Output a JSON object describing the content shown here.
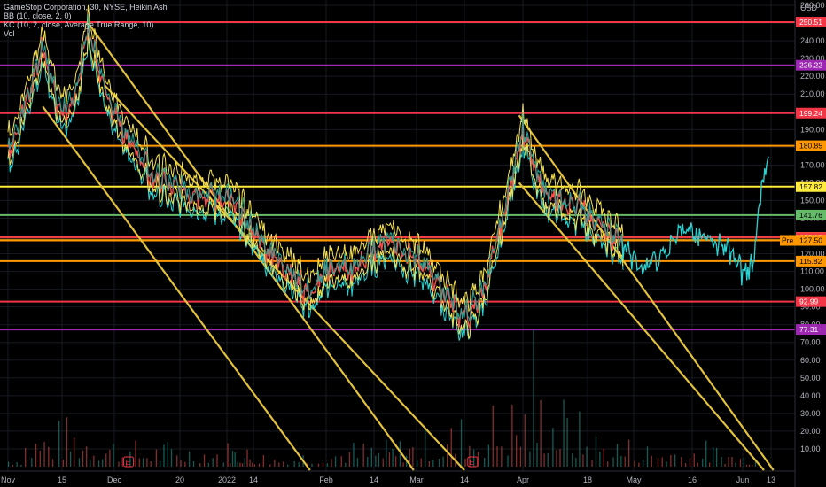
{
  "legend": {
    "symbol": "GameStop Corporation, 30, NYSE, Heikin Ashi",
    "bb": "BB (10, close, 2, 0)",
    "kc": "KC (10, 2, close, Average True Range, 10)",
    "vol": "Vol"
  },
  "chart_data": {
    "type": "line",
    "title": "GameStop Corporation, 30, NYSE, Heikin Ashi",
    "currency": "USD",
    "ylim": [
      0,
      260
    ],
    "y_ticks": [
      10,
      20,
      30,
      40,
      50,
      60,
      70,
      80,
      90,
      100,
      110,
      120,
      130,
      140,
      150,
      160,
      170,
      180,
      190,
      200,
      210,
      220,
      230,
      240,
      250,
      260
    ],
    "x_ticks": [
      "Nov",
      "15",
      "Dec",
      "20",
      "2022",
      "14",
      "Feb",
      "14",
      "Mar",
      "14",
      "Apr",
      "18",
      "May",
      "16",
      "Jun",
      "13"
    ],
    "price_series": {
      "name": "GME",
      "x": [
        "Nov 1",
        "Nov 5",
        "Nov 10",
        "Nov 15",
        "Nov 19",
        "Nov 23",
        "Nov 28",
        "Dec 2",
        "Dec 7",
        "Dec 12",
        "Dec 17",
        "Dec 22",
        "Dec 28",
        "Jan 3",
        "Jan 8",
        "Jan 14",
        "Jan 19",
        "Jan 24",
        "Jan 28",
        "Feb 2",
        "Feb 8",
        "Feb 14",
        "Feb 19",
        "Feb 25",
        "Mar 3",
        "Mar 8",
        "Mar 14",
        "Mar 19",
        "Mar 25",
        "Mar 29",
        "Apr 2",
        "Apr 6",
        "Apr 11",
        "Apr 16",
        "Apr 22",
        "Apr 28",
        "May 3",
        "May 8",
        "May 13",
        "May 18",
        "May 23",
        "May 28",
        "Jun 1",
        "Jun 5",
        "Jun 9",
        "Jun 12"
      ],
      "values": [
        178,
        200,
        236,
        198,
        206,
        248,
        212,
        196,
        178,
        164,
        158,
        155,
        152,
        150,
        142,
        132,
        118,
        108,
        96,
        112,
        110,
        122,
        128,
        120,
        114,
        100,
        82,
        98,
        150,
        192,
        165,
        152,
        148,
        146,
        134,
        125,
        112,
        120,
        132,
        132,
        128,
        120,
        108,
        115,
        155,
        175
      ]
    },
    "levels": [
      {
        "value": 250.51,
        "label": "250.51",
        "color": "#f23645"
      },
      {
        "value": 226.22,
        "label": "226.22",
        "color": "#9c27b0"
      },
      {
        "value": 199.24,
        "label": "199.24",
        "color": "#f23645"
      },
      {
        "value": 180.85,
        "label": "180.85",
        "color": "#ff9800"
      },
      {
        "value": 157.82,
        "label": "157.82",
        "color": "#ffeb3b"
      },
      {
        "value": 141.76,
        "label": "141.76",
        "color": "#66bb6a"
      },
      {
        "value": 129.22,
        "label": "129.22",
        "color": "#ffeb3b"
      },
      {
        "value": 129.18,
        "label": "129.18",
        "color": "#f23645"
      },
      {
        "value": 127.6,
        "label": "127.60",
        "color": "#ffeb3b"
      },
      {
        "value": 127.5,
        "label": "127.50",
        "color": "#ff9800",
        "tag": "Pre"
      },
      {
        "value": 115.82,
        "label": "115.82",
        "color": "#ff9800"
      },
      {
        "value": 92.99,
        "label": "92.99",
        "color": "#f23645"
      },
      {
        "value": 77.31,
        "label": "77.31",
        "color": "#9c27b0"
      }
    ],
    "trendlines": [
      {
        "from": [
          "Nov 10",
          203
        ],
        "to": [
          "Jan 28",
          -2
        ]
      },
      {
        "from": [
          "Nov 23",
          250
        ],
        "to": [
          "Feb 28",
          -2
        ]
      },
      {
        "from": [
          "Nov 28",
          215
        ],
        "to": [
          "Mar 14",
          -2
        ]
      },
      {
        "from": [
          "Mar 28",
          198
        ],
        "to": [
          "Jun 14",
          -2
        ]
      },
      {
        "from": [
          "Mar 28",
          160
        ],
        "to": [
          "Jun 10",
          -2
        ]
      }
    ],
    "annotations": [
      "E",
      "E"
    ],
    "volume_series": {
      "name": "Vol",
      "x": [
        "Nov 5",
        "Nov 20",
        "Dec 5",
        "Dec 20",
        "Jan 5",
        "Jan 20",
        "Feb 5",
        "Feb 20",
        "Mar 5",
        "Mar 20",
        "Apr 5",
        "Apr 20",
        "May 5",
        "May 20",
        "Jun 5"
      ],
      "values": [
        3,
        4,
        2,
        2,
        2,
        1,
        2,
        2,
        3,
        5,
        7,
        3,
        2,
        2,
        1
      ]
    },
    "grid": true,
    "legend_position": "top-left"
  },
  "colors": {
    "background": "#000000",
    "axis_text": "#b2b5be",
    "price_up": "#26a69a",
    "price_down": "#ef5350",
    "band": "#f5e050",
    "channel": "#2bd3d3",
    "trendline": "#e2c13c"
  }
}
